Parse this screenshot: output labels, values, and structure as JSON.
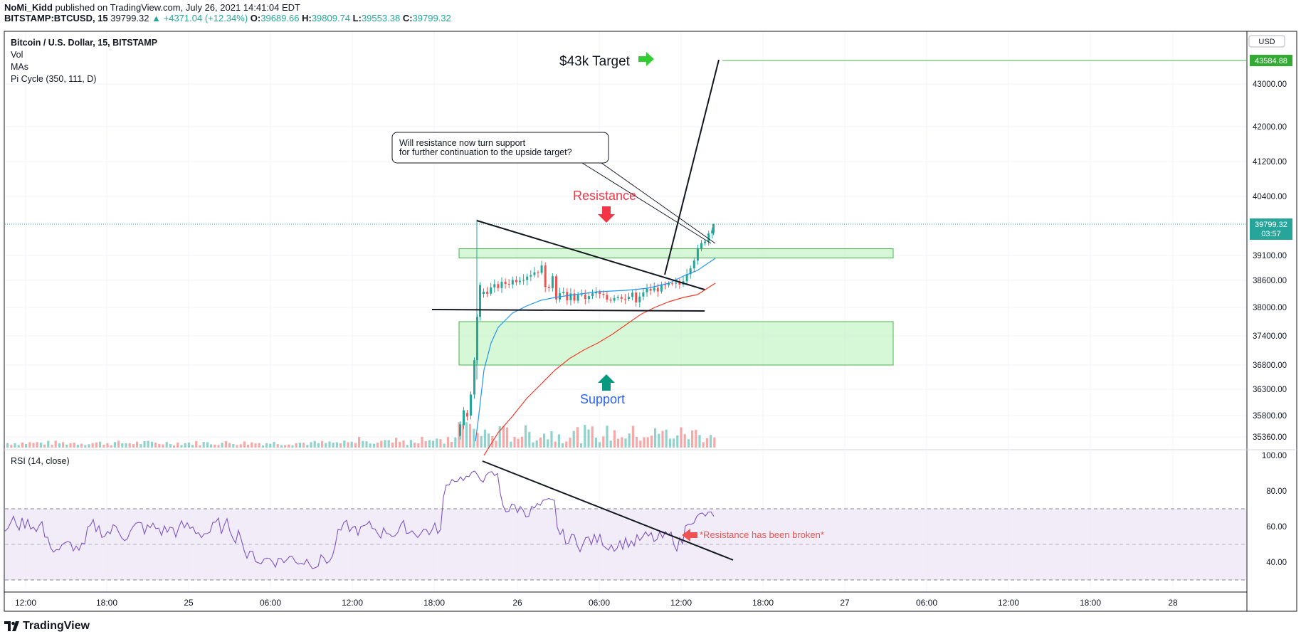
{
  "header": {
    "author": "NoMi_Kidd",
    "published_text": "published on TradingView.com, July 26, 2021 14:41:04 EDT",
    "symbol": "BITSTAMP:BTCUSD, 15",
    "last": "39799.32",
    "change": "▲ +4371.04 (+12.34%)",
    "o_label": "O:",
    "o": "39689.66",
    "h_label": "H:",
    "h": "39809.74",
    "l_label": "L:",
    "l": "39553.38",
    "c_label": "C:",
    "c": "39799.32"
  },
  "legend": {
    "title": "Bitcoin / U.S. Dollar, 15, BITSTAMP",
    "vol": "Vol",
    "mas": "MAs",
    "pi": "Pi Cycle (350, 111, D)",
    "rsi": "RSI (14, close)"
  },
  "currency_button": "USD",
  "annotations": {
    "target": "$43k Target",
    "resistance": "Resistance",
    "support": "Support",
    "callout_line1": "Will resistance now turn support",
    "callout_line2": "for further continuation to the upside target?",
    "rsi_note": "*Resistance has been broken*"
  },
  "price_labels": {
    "target_price": "43584.88",
    "last_price": "39799.32",
    "countdown": "03:57"
  },
  "footer": {
    "brand": "TradingView"
  },
  "colors": {
    "up": "#26a69a",
    "down": "#ef5350",
    "ma_fast": "#2196f3",
    "ma_slow": "#f23a2a",
    "rsi_line": "#7e57c2",
    "zone_fill": "#c8f5c8",
    "zone_border": "#4caf50",
    "target_green": "#33cc33",
    "resistance_red": "#f23645",
    "support_blue": "#2962ff",
    "support_arrow": "#089981"
  },
  "chart_data": {
    "type": "candlestick",
    "price_axis": {
      "ticks": [
        43000.0,
        42000.0,
        41200.0,
        40400.0,
        39100.0,
        38600.0,
        38000.0,
        37400.0,
        36800.0,
        36300.0,
        35800.0,
        35360.0
      ],
      "labels": [
        "43000.00",
        "42000.00",
        "41200.00",
        "40400.00",
        "39100.00",
        "38600.00",
        "38000.00",
        "37400.00",
        "36800.00",
        "36300.00",
        "35800.00",
        "35360.00"
      ]
    },
    "rsi_axis": {
      "ticks": [
        100,
        80,
        60,
        40
      ],
      "labels": [
        "100.00",
        "80.00",
        "60.00",
        "40.00"
      ],
      "bands": [
        70,
        50,
        30
      ]
    },
    "time_axis": {
      "labels": [
        "12:00",
        "18:00",
        "25",
        "06:00",
        "12:00",
        "18:00",
        "26",
        "06:00",
        "12:00",
        "18:00",
        "27",
        "06:00",
        "12:00",
        "18:00",
        "28"
      ]
    },
    "levels": {
      "target": 43584.88,
      "last": 39799.32,
      "resistance_zone": [
        39050,
        39250
      ],
      "support_zone": [
        36800,
        37700
      ],
      "support_line": 37950
    }
  }
}
